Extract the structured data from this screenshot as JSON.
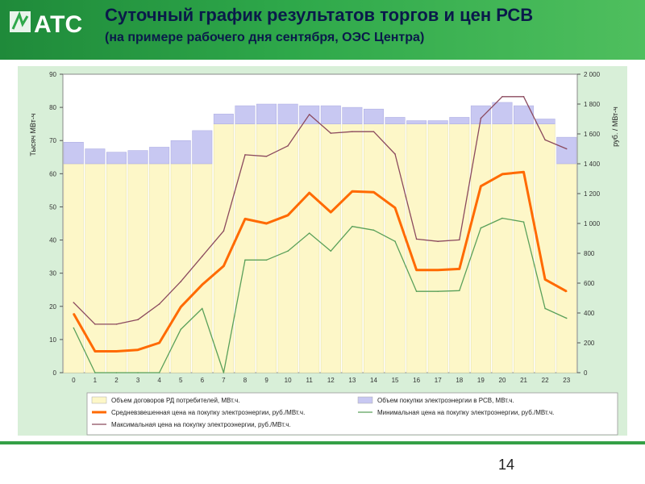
{
  "header": {
    "logo_text": "АТС",
    "title": "Суточный график результатов торгов и цен РСВ",
    "subtitle": "(на примере рабочего дня сентября, ОЭС Центра)"
  },
  "page_number": "14",
  "colors": {
    "header_green": "#2ea84a",
    "panel_bg": "#d8efd8",
    "rd_bar": "#fdf7c8",
    "rsv_bar": "#c8c8f2",
    "avg_price": "#ff6a00",
    "min_price": "#5aa05a",
    "max_price": "#8b4a5e"
  },
  "chart_data": {
    "type": "bar",
    "ylabel": "Тысяч МВт-ч",
    "y2label": "руб. / МВт-ч",
    "ylim": [
      0,
      90
    ],
    "y2lim": [
      0,
      2000
    ],
    "yticks": [
      "0",
      "10",
      "20",
      "30",
      "40",
      "50",
      "60",
      "70",
      "80",
      "90"
    ],
    "y2ticks": [
      "0",
      "200",
      "400",
      "600",
      "800",
      "1 000",
      "1 200",
      "1 400",
      "1 600",
      "1 800",
      "2 000"
    ],
    "categories": [
      "0",
      "1",
      "2",
      "3",
      "4",
      "5",
      "6",
      "7",
      "8",
      "9",
      "10",
      "11",
      "12",
      "13",
      "14",
      "15",
      "16",
      "17",
      "18",
      "19",
      "20",
      "21",
      "22",
      "23"
    ],
    "bar_series": [
      {
        "name": "Объем договоров РД потребителей, МВт.ч.",
        "values": [
          63,
          63,
          63,
          63,
          63,
          63,
          63,
          75,
          75,
          75,
          75,
          75,
          75,
          75,
          75,
          75,
          75,
          75,
          75,
          75,
          75,
          75,
          75,
          63
        ]
      },
      {
        "name": "Объем покупки электроэнергии в РСВ, МВт.ч.",
        "values": [
          6.5,
          4.5,
          3.5,
          4,
          5,
          7,
          10,
          3,
          5.5,
          6,
          6,
          5.5,
          5.5,
          5,
          4.5,
          2,
          1,
          1,
          2,
          5.5,
          6.5,
          5.5,
          1.5,
          8
        ]
      }
    ],
    "line_series": [
      {
        "name": "Средневзвешенная цена на покупку электроэнергии, руб./МВт.ч.",
        "values": [
          395,
          143,
          143,
          153,
          200,
          440,
          590,
          715,
          1030,
          1000,
          1055,
          1205,
          1075,
          1215,
          1210,
          1105,
          688,
          688,
          695,
          1250,
          1330,
          1345,
          625,
          545
        ]
      },
      {
        "name": "Минимальная цена на покупку электроэнергии, руб./МВт.ч.",
        "values": [
          300,
          0,
          0,
          0,
          0,
          290,
          430,
          0,
          755,
          755,
          815,
          935,
          815,
          980,
          955,
          880,
          545,
          545,
          550,
          970,
          1035,
          1010,
          430,
          365
        ]
      },
      {
        "name": "Максимальная цена на покупку электроэнергии, руб./МВт.ч.",
        "values": [
          470,
          325,
          325,
          355,
          460,
          610,
          780,
          950,
          1460,
          1450,
          1520,
          1730,
          1605,
          1615,
          1615,
          1465,
          895,
          880,
          890,
          1705,
          1850,
          1850,
          1560,
          1500
        ]
      }
    ]
  }
}
